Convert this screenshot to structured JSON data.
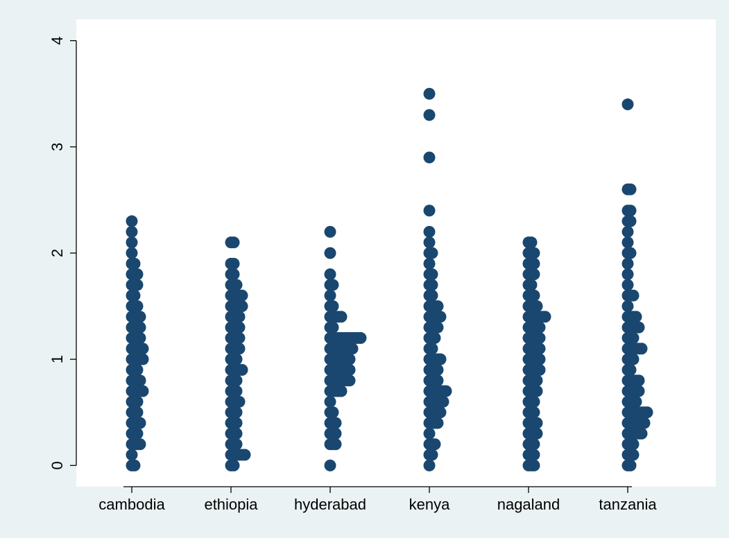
{
  "chart_data": {
    "type": "dotplot",
    "title": "",
    "xlabel": "",
    "ylabel": "",
    "categories": [
      "cambodia",
      "ethiopia",
      "hyderabad",
      "kenya",
      "nagaland",
      "tanzania"
    ],
    "ylim": [
      -0.2,
      4.2
    ],
    "yticks": [
      0,
      1,
      2,
      3,
      4
    ],
    "grid": false,
    "legend": "none",
    "marker_color": "#1a476f",
    "background_color": "#eaf2f3",
    "series": [
      {
        "category": "cambodia",
        "bins": [
          [
            0,
            2
          ],
          [
            0.1,
            1
          ],
          [
            0.2,
            4
          ],
          [
            0.3,
            3
          ],
          [
            0.4,
            4
          ],
          [
            0.5,
            3
          ],
          [
            0.6,
            3
          ],
          [
            0.7,
            5
          ],
          [
            0.8,
            4
          ],
          [
            0.9,
            3
          ],
          [
            1.0,
            5
          ],
          [
            1.1,
            5
          ],
          [
            1.2,
            4
          ],
          [
            1.3,
            4
          ],
          [
            1.4,
            4
          ],
          [
            1.5,
            3
          ],
          [
            1.6,
            2
          ],
          [
            1.7,
            3
          ],
          [
            1.8,
            3
          ],
          [
            1.9,
            2
          ],
          [
            2.0,
            1
          ],
          [
            2.1,
            1
          ],
          [
            2.2,
            1
          ],
          [
            2.3,
            1
          ]
        ]
      },
      {
        "category": "ethiopia",
        "bins": [
          [
            0,
            2
          ],
          [
            0.1,
            6
          ],
          [
            0.2,
            3
          ],
          [
            0.3,
            3
          ],
          [
            0.4,
            3
          ],
          [
            0.5,
            3
          ],
          [
            0.6,
            4
          ],
          [
            0.7,
            3
          ],
          [
            0.8,
            3
          ],
          [
            0.9,
            5
          ],
          [
            1.0,
            3
          ],
          [
            1.1,
            4
          ],
          [
            1.2,
            4
          ],
          [
            1.3,
            4
          ],
          [
            1.4,
            4
          ],
          [
            1.5,
            5
          ],
          [
            1.6,
            5
          ],
          [
            1.7,
            3
          ],
          [
            1.8,
            2
          ],
          [
            1.9,
            2
          ],
          [
            2.1,
            2
          ]
        ]
      },
      {
        "category": "hyderabad",
        "bins": [
          [
            0,
            1
          ],
          [
            0.2,
            3
          ],
          [
            0.3,
            3
          ],
          [
            0.4,
            3
          ],
          [
            0.5,
            2
          ],
          [
            0.6,
            1
          ],
          [
            0.7,
            5
          ],
          [
            0.8,
            8
          ],
          [
            0.9,
            8
          ],
          [
            1.0,
            8
          ],
          [
            1.1,
            9
          ],
          [
            1.2,
            12
          ],
          [
            1.3,
            2
          ],
          [
            1.4,
            5
          ],
          [
            1.5,
            2
          ],
          [
            1.6,
            1
          ],
          [
            1.7,
            2
          ],
          [
            1.8,
            1
          ],
          [
            2.0,
            1
          ],
          [
            2.2,
            1
          ]
        ]
      },
      {
        "category": "kenya",
        "bins": [
          [
            0,
            1
          ],
          [
            0.1,
            2
          ],
          [
            0.2,
            3
          ],
          [
            0.3,
            1
          ],
          [
            0.4,
            4
          ],
          [
            0.5,
            5
          ],
          [
            0.6,
            6
          ],
          [
            0.7,
            7
          ],
          [
            0.8,
            4
          ],
          [
            0.9,
            4
          ],
          [
            1.0,
            5
          ],
          [
            1.1,
            2
          ],
          [
            1.2,
            3
          ],
          [
            1.3,
            4
          ],
          [
            1.4,
            5
          ],
          [
            1.5,
            4
          ],
          [
            1.6,
            2
          ],
          [
            1.7,
            2
          ],
          [
            1.8,
            2
          ],
          [
            1.9,
            1
          ],
          [
            2.0,
            2
          ],
          [
            2.1,
            1
          ],
          [
            2.2,
            1
          ],
          [
            2.4,
            1
          ],
          [
            2.9,
            1
          ],
          [
            3.3,
            1
          ],
          [
            3.5,
            1
          ]
        ]
      },
      {
        "category": "nagaland",
        "bins": [
          [
            0,
            3
          ],
          [
            0.1,
            3
          ],
          [
            0.2,
            3
          ],
          [
            0.3,
            4
          ],
          [
            0.4,
            4
          ],
          [
            0.5,
            3
          ],
          [
            0.6,
            3
          ],
          [
            0.7,
            4
          ],
          [
            0.8,
            4
          ],
          [
            0.9,
            5
          ],
          [
            1.0,
            5
          ],
          [
            1.1,
            5
          ],
          [
            1.2,
            5
          ],
          [
            1.3,
            5
          ],
          [
            1.4,
            7
          ],
          [
            1.5,
            4
          ],
          [
            1.6,
            3
          ],
          [
            1.7,
            2
          ],
          [
            1.8,
            3
          ],
          [
            1.9,
            3
          ],
          [
            2.0,
            3
          ],
          [
            2.1,
            2
          ]
        ]
      },
      {
        "category": "tanzania",
        "bins": [
          [
            0,
            2
          ],
          [
            0.1,
            3
          ],
          [
            0.2,
            3
          ],
          [
            0.3,
            6
          ],
          [
            0.4,
            7
          ],
          [
            0.5,
            8
          ],
          [
            0.6,
            4
          ],
          [
            0.7,
            5
          ],
          [
            0.8,
            5
          ],
          [
            0.9,
            2
          ],
          [
            1.0,
            3
          ],
          [
            1.1,
            6
          ],
          [
            1.2,
            3
          ],
          [
            1.3,
            5
          ],
          [
            1.4,
            4
          ],
          [
            1.5,
            1
          ],
          [
            1.6,
            3
          ],
          [
            1.7,
            1
          ],
          [
            1.8,
            1
          ],
          [
            1.9,
            1
          ],
          [
            2.0,
            2
          ],
          [
            2.1,
            1
          ],
          [
            2.2,
            1
          ],
          [
            2.3,
            2
          ],
          [
            2.4,
            2
          ],
          [
            2.6,
            2
          ],
          [
            3.4,
            1
          ]
        ]
      }
    ]
  }
}
